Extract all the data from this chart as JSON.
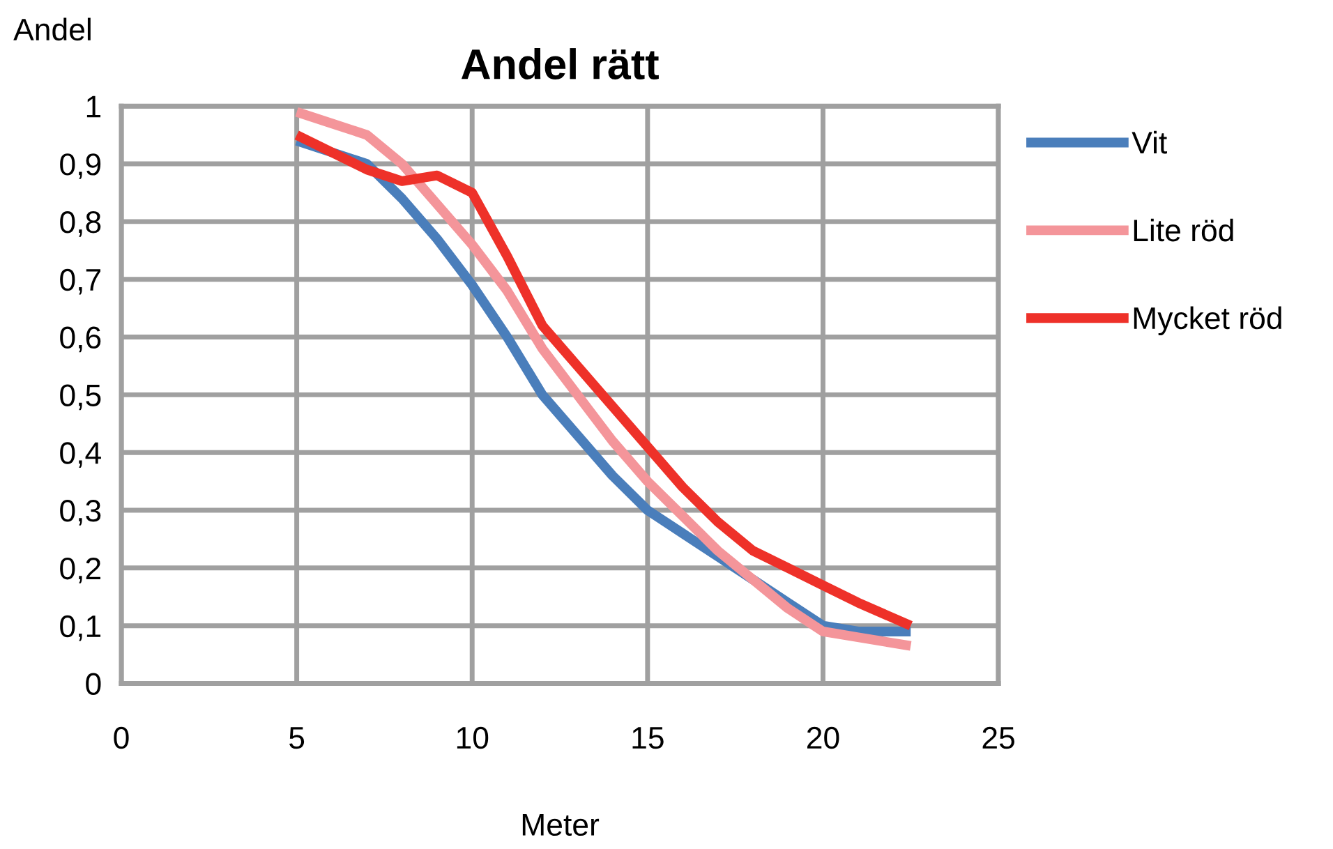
{
  "chart_data": {
    "type": "line",
    "title": "Andel rätt",
    "xlabel": "Meter",
    "ylabel": "Andel",
    "x": [
      5,
      6,
      7,
      8,
      9,
      10,
      11,
      12,
      13,
      14,
      15,
      16,
      17,
      18,
      19,
      20,
      21,
      22.5
    ],
    "series": [
      {
        "name": "Vit",
        "color": "#4a7ebb",
        "values": [
          0.94,
          0.92,
          0.9,
          0.84,
          0.77,
          0.69,
          0.6,
          0.5,
          0.43,
          0.36,
          0.3,
          0.26,
          0.22,
          0.18,
          0.14,
          0.1,
          0.09,
          0.09
        ]
      },
      {
        "name": "Lite röd",
        "color": "#f4959a",
        "values": [
          0.99,
          0.97,
          0.95,
          0.9,
          0.83,
          0.76,
          0.68,
          0.58,
          0.5,
          0.42,
          0.35,
          0.29,
          0.23,
          0.18,
          0.13,
          0.09,
          0.08,
          0.065
        ]
      },
      {
        "name": "Mycket röd",
        "color": "#ee3129",
        "values": [
          0.95,
          0.92,
          0.89,
          0.87,
          0.88,
          0.85,
          0.74,
          0.62,
          0.55,
          0.48,
          0.41,
          0.34,
          0.28,
          0.23,
          0.2,
          0.17,
          0.14,
          0.1
        ]
      }
    ],
    "xlim": [
      0,
      25
    ],
    "xticks": [
      0,
      5,
      10,
      15,
      20,
      25
    ],
    "ylim": [
      0,
      1
    ],
    "yticks": [
      0,
      {
        "value": 0.1,
        "label": "0,1"
      },
      {
        "value": 0.2,
        "label": "0,2"
      },
      {
        "value": 0.3,
        "label": "0,3"
      },
      {
        "value": 0.4,
        "label": "0,4"
      },
      {
        "value": 0.5,
        "label": "0,5"
      },
      {
        "value": 0.6,
        "label": "0,6"
      },
      {
        "value": 0.7,
        "label": "0,7"
      },
      {
        "value": 0.8,
        "label": "0,8"
      },
      {
        "value": 0.9,
        "label": "0,9"
      },
      1
    ],
    "grid": true,
    "legend": "right",
    "marker": "none",
    "line_style": "solid"
  }
}
